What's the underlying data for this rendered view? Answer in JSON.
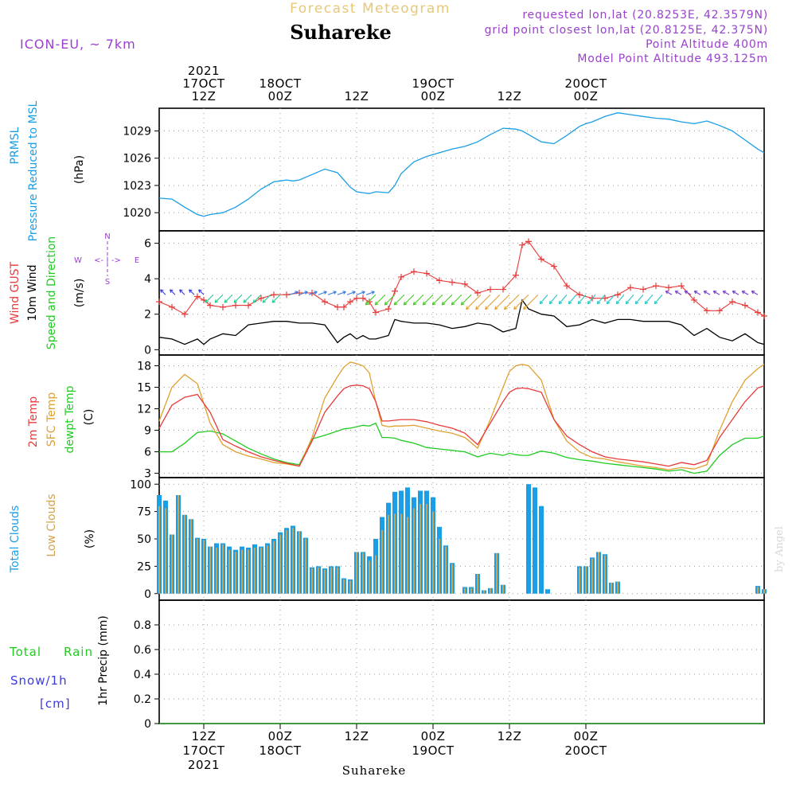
{
  "header": {
    "title": "Suhareke",
    "product": "Forecast Meteogram",
    "model": "ICON-EU, ~ 7km",
    "requested": "requested lon,lat (20.8253E, 42.3579N)",
    "closest": "grid point closest lon,lat (20.8125E, 42.375N)",
    "point_alt": "Point Altitude 400m",
    "model_alt": "Model Point Altitude 493.125m",
    "watermark": "by Angel",
    "footer": "Suhareke"
  },
  "colors": {
    "pressure": "#1a9ee6",
    "gust": "#e83a3a",
    "wind10m": "#000000",
    "t2m": "#e83a3a",
    "sfc": "#e0a030",
    "dewpt": "#20cc20",
    "total_clouds": "#1a9ee6",
    "low_clouds": "#d4a24a",
    "rain": "#20cc20",
    "snow": "#3a3ae0",
    "compass": "#9a40d0",
    "title_gold": "#e8c878"
  },
  "time_axis": {
    "start_hour": 0,
    "end_hour": 95,
    "major_ticks": [
      {
        "hour": 7,
        "top": [
          "2021",
          "17OCT",
          "12Z"
        ],
        "bottom": [
          "12Z",
          "17OCT",
          "2021"
        ]
      },
      {
        "hour": 19,
        "top": [
          "18OCT",
          "00Z"
        ],
        "bottom": [
          "00Z",
          "18OCT"
        ]
      },
      {
        "hour": 31,
        "top": [
          "12Z"
        ],
        "bottom": [
          "12Z"
        ]
      },
      {
        "hour": 43,
        "top": [
          "19OCT",
          "00Z"
        ],
        "bottom": [
          "00Z",
          "19OCT"
        ]
      },
      {
        "hour": 55,
        "top": [
          "12Z"
        ],
        "bottom": [
          "12Z"
        ]
      },
      {
        "hour": 67,
        "top": [
          "20OCT",
          "00Z"
        ],
        "bottom": [
          "00Z",
          "20OCT"
        ]
      }
    ]
  },
  "panels": {
    "pressure": {
      "labels": [
        "PRMSL",
        "Pressure Reduced to MSL"
      ],
      "unit": "(hPa)"
    },
    "wind": {
      "labels": [
        "Wind GUST",
        "10m Wind",
        "Speed and Direction"
      ],
      "unit": "(m/s)",
      "compass": {
        "n": "N",
        "s": "S",
        "w": "W",
        "e": "E",
        "ns": "^\n|\nv",
        "we": "<- | ->"
      }
    },
    "temp": {
      "labels": [
        "2m Temp",
        "SFC Temp",
        "dewpt Temp"
      ],
      "unit": "(C)"
    },
    "clouds": {
      "labels": [
        "Total Clouds",
        "Low Clouds"
      ],
      "unit": "(%)"
    },
    "precip": {
      "labels": [
        "Total",
        "Rain",
        "Snow/1h",
        "[cm]"
      ],
      "unit": "1hr Precip (mm)"
    }
  },
  "chart_data": [
    {
      "type": "line",
      "name": "pressure",
      "ylim": [
        1018,
        1031.5
      ],
      "yticks": [
        1020,
        1023,
        1026,
        1029
      ],
      "x": [
        0,
        2,
        4,
        6,
        7,
        8,
        10,
        12,
        14,
        16,
        18,
        19,
        20,
        21,
        22,
        24,
        26,
        28,
        29,
        30,
        31,
        32,
        33,
        34,
        36,
        37,
        38,
        40,
        42,
        44,
        46,
        48,
        50,
        52,
        54,
        56,
        57,
        58,
        60,
        62,
        64,
        66,
        67,
        68,
        70,
        72,
        74,
        76,
        78,
        80,
        82,
        84,
        86,
        88,
        90,
        92,
        94,
        95
      ],
      "series": [
        {
          "name": "PRMSL",
          "values": [
            1021.6,
            1021.5,
            1020.6,
            1019.8,
            1019.6,
            1019.8,
            1020.0,
            1020.6,
            1021.5,
            1022.6,
            1023.4,
            1023.5,
            1023.6,
            1023.5,
            1023.6,
            1024.2,
            1024.8,
            1024.4,
            1023.6,
            1022.8,
            1022.3,
            1022.2,
            1022.1,
            1022.3,
            1022.2,
            1023.0,
            1024.3,
            1025.6,
            1026.2,
            1026.6,
            1027.0,
            1027.3,
            1027.8,
            1028.6,
            1029.3,
            1029.2,
            1029.0,
            1028.6,
            1027.8,
            1027.6,
            1028.5,
            1029.5,
            1029.8,
            1030.0,
            1030.6,
            1031.0,
            1030.8,
            1030.6,
            1030.4,
            1030.3,
            1030.0,
            1029.8,
            1030.1,
            1029.6,
            1029.0,
            1028.0,
            1027.0,
            1026.6
          ]
        }
      ]
    },
    {
      "type": "line",
      "name": "wind",
      "ylim": [
        -0.3,
        6.7
      ],
      "yticks": [
        0,
        2,
        4,
        6
      ],
      "x": [
        0,
        2,
        4,
        6,
        7,
        8,
        10,
        12,
        14,
        16,
        18,
        20,
        22,
        24,
        26,
        28,
        29,
        30,
        31,
        32,
        33,
        34,
        36,
        37,
        38,
        40,
        42,
        44,
        46,
        48,
        50,
        52,
        54,
        56,
        57,
        58,
        60,
        62,
        64,
        66,
        68,
        70,
        72,
        74,
        76,
        78,
        80,
        82,
        84,
        86,
        88,
        90,
        92,
        94,
        95
      ],
      "series": [
        {
          "name": "Wind GUST",
          "values": [
            2.7,
            2.4,
            2.0,
            3.0,
            2.8,
            2.5,
            2.4,
            2.5,
            2.5,
            2.9,
            3.1,
            3.1,
            3.2,
            3.2,
            2.7,
            2.4,
            2.4,
            2.7,
            2.9,
            2.9,
            2.7,
            2.1,
            2.3,
            3.3,
            4.1,
            4.4,
            4.3,
            3.9,
            3.8,
            3.7,
            3.2,
            3.4,
            3.4,
            4.2,
            5.9,
            6.1,
            5.1,
            4.7,
            3.6,
            3.1,
            2.9,
            2.9,
            3.1,
            3.5,
            3.4,
            3.6,
            3.5,
            3.6,
            2.8,
            2.2,
            2.2,
            2.7,
            2.5,
            2.1,
            1.9
          ]
        },
        {
          "name": "10m Wind",
          "values": [
            0.7,
            0.6,
            0.3,
            0.6,
            0.3,
            0.6,
            0.9,
            0.8,
            1.4,
            1.5,
            1.6,
            1.6,
            1.5,
            1.5,
            1.4,
            0.4,
            0.7,
            0.9,
            0.6,
            0.8,
            0.6,
            0.6,
            0.8,
            1.7,
            1.6,
            1.5,
            1.5,
            1.4,
            1.2,
            1.3,
            1.5,
            1.4,
            1.0,
            1.2,
            2.8,
            2.3,
            2.0,
            1.9,
            1.3,
            1.4,
            1.7,
            1.5,
            1.7,
            1.7,
            1.6,
            1.6,
            1.6,
            1.4,
            0.8,
            1.2,
            0.7,
            0.5,
            0.9,
            0.4,
            0.3
          ]
        }
      ]
    },
    {
      "type": "line",
      "name": "temperature",
      "ylim": [
        2.4,
        19.5
      ],
      "yticks": [
        3,
        6,
        9,
        12,
        15,
        18
      ],
      "x": [
        0,
        2,
        4,
        6,
        8,
        10,
        12,
        14,
        16,
        18,
        20,
        22,
        24,
        26,
        28,
        29,
        30,
        31,
        32,
        33,
        34,
        35,
        36,
        37,
        38,
        40,
        42,
        44,
        46,
        48,
        50,
        52,
        54,
        55,
        56,
        57,
        58,
        60,
        62,
        64,
        66,
        68,
        70,
        72,
        74,
        76,
        78,
        80,
        82,
        84,
        86,
        88,
        90,
        92,
        94,
        95
      ],
      "series": [
        {
          "name": "2m Temp",
          "values": [
            9.3,
            12.5,
            13.6,
            14.0,
            11.5,
            7.7,
            6.8,
            6.0,
            5.3,
            4.8,
            4.4,
            4.0,
            7.5,
            11.5,
            13.8,
            14.8,
            15.2,
            15.3,
            15.2,
            14.8,
            13.0,
            10.3,
            10.3,
            10.4,
            10.5,
            10.5,
            10.2,
            9.7,
            9.3,
            8.6,
            7.0,
            10.0,
            13.0,
            14.3,
            14.8,
            14.9,
            14.8,
            14.3,
            10.5,
            8.2,
            7.0,
            6.0,
            5.3,
            5.0,
            4.8,
            4.6,
            4.3,
            4.0,
            4.5,
            4.2,
            4.8,
            8.0,
            10.5,
            13.0,
            14.9,
            15.2
          ]
        },
        {
          "name": "SFC Temp",
          "values": [
            10.3,
            15.0,
            16.8,
            15.5,
            10.0,
            7.0,
            6.0,
            5.4,
            5.0,
            4.5,
            4.3,
            4.0,
            8.0,
            13.5,
            16.5,
            17.8,
            18.5,
            18.3,
            18.0,
            17.0,
            13.0,
            9.7,
            9.5,
            9.6,
            9.6,
            9.7,
            9.3,
            8.9,
            8.6,
            8.0,
            6.5,
            10.5,
            15.0,
            17.2,
            18.0,
            18.2,
            18.0,
            16.0,
            10.5,
            7.5,
            6.0,
            5.2,
            5.0,
            4.6,
            4.3,
            4.0,
            3.8,
            3.5,
            3.8,
            3.6,
            4.2,
            9.0,
            13.0,
            16.0,
            17.6,
            18.2
          ]
        },
        {
          "name": "dewpt Temp",
          "values": [
            6.0,
            6.0,
            7.2,
            8.7,
            8.9,
            8.5,
            7.5,
            6.5,
            5.7,
            5.0,
            4.5,
            4.2,
            7.8,
            8.3,
            8.9,
            9.2,
            9.3,
            9.5,
            9.7,
            9.6,
            10.0,
            8.0,
            8.0,
            7.9,
            7.6,
            7.2,
            6.6,
            6.4,
            6.2,
            6.0,
            5.3,
            5.8,
            5.5,
            5.8,
            5.6,
            5.5,
            5.5,
            6.1,
            5.8,
            5.2,
            4.9,
            4.7,
            4.4,
            4.2,
            4.0,
            3.8,
            3.6,
            3.3,
            3.5,
            3.0,
            3.3,
            5.5,
            7.0,
            7.9,
            7.9,
            8.2
          ]
        }
      ]
    },
    {
      "type": "bar",
      "name": "clouds",
      "ylim": [
        -6,
        106
      ],
      "yticks": [
        0,
        25,
        50,
        75,
        100
      ],
      "x": [
        0,
        1,
        2,
        3,
        4,
        5,
        6,
        7,
        8,
        9,
        10,
        11,
        12,
        13,
        14,
        15,
        16,
        17,
        18,
        19,
        20,
        21,
        22,
        23,
        24,
        25,
        26,
        27,
        28,
        29,
        30,
        31,
        32,
        33,
        34,
        35,
        36,
        37,
        38,
        39,
        40,
        41,
        42,
        43,
        44,
        45,
        46,
        47,
        48,
        49,
        50,
        51,
        52,
        53,
        54,
        55,
        56,
        57,
        58,
        59,
        60,
        61,
        62,
        63,
        64,
        65,
        66,
        67,
        68,
        69,
        70,
        71,
        72,
        73,
        74,
        75,
        76,
        77,
        78,
        79,
        80,
        81,
        82,
        83,
        84,
        85,
        86,
        87,
        88,
        89,
        90,
        91,
        92,
        93,
        94,
        95
      ],
      "series": [
        {
          "name": "Total Clouds",
          "values": [
            90,
            85,
            54,
            90,
            72,
            68,
            51,
            50,
            43,
            46,
            46,
            43,
            40,
            43,
            42,
            45,
            43,
            46,
            50,
            56,
            60,
            62,
            57,
            51,
            24,
            25,
            23,
            25,
            25,
            14,
            13,
            38,
            38,
            34,
            50,
            70,
            83,
            93,
            94,
            97,
            88,
            94,
            94,
            88,
            61,
            44,
            28,
            0,
            6,
            6,
            18,
            3,
            5,
            37,
            8,
            0,
            0,
            0,
            100,
            97,
            80,
            4,
            0,
            0,
            0,
            0,
            25,
            25,
            33,
            38,
            36,
            10,
            11,
            0,
            0,
            0,
            0,
            0,
            0,
            0,
            0,
            0,
            0,
            0,
            0,
            0,
            0,
            0,
            0,
            0,
            0,
            0,
            0,
            0,
            7,
            4
          ]
        },
        {
          "name": "Low Clouds",
          "values": [
            80,
            78,
            54,
            90,
            72,
            68,
            50,
            49,
            43,
            42,
            45,
            40,
            38,
            40,
            40,
            42,
            42,
            44,
            48,
            54,
            58,
            60,
            57,
            50,
            23,
            24,
            22,
            24,
            24,
            13,
            12,
            38,
            37,
            30,
            35,
            58,
            72,
            73,
            73,
            70,
            78,
            82,
            82,
            75,
            50,
            43,
            27,
            0,
            5,
            5,
            18,
            3,
            5,
            37,
            8,
            0,
            0,
            0,
            0,
            0,
            0,
            0,
            0,
            0,
            0,
            0,
            24,
            25,
            32,
            38,
            35,
            10,
            11,
            0,
            0,
            0,
            0,
            0,
            0,
            0,
            0,
            0,
            0,
            0,
            0,
            0,
            0,
            0,
            0,
            0,
            0,
            0,
            0,
            0,
            6,
            4
          ]
        }
      ]
    },
    {
      "type": "bar",
      "name": "precipitation",
      "ylim": [
        0,
        1.0
      ],
      "yticks": [
        0,
        0.2,
        0.4,
        0.6,
        0.8
      ],
      "x": [
        0,
        95
      ],
      "series": [
        {
          "name": "Total Rain",
          "values": [
            0,
            0
          ]
        },
        {
          "name": "Snow/1h",
          "values": [
            0,
            0
          ]
        }
      ]
    }
  ]
}
